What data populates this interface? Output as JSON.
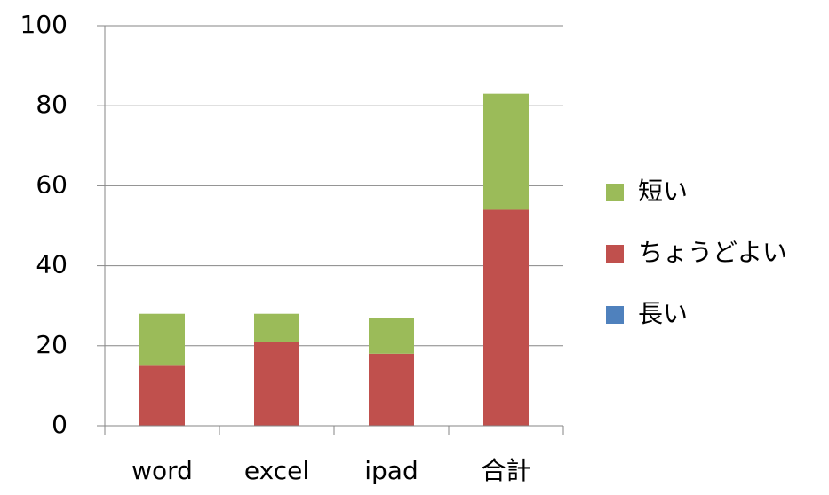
{
  "chart_data": {
    "type": "stacked_bar",
    "categories": [
      "word",
      "excel",
      "ipad",
      "合計"
    ],
    "series": [
      {
        "name": "長い",
        "color": "#4f81bd",
        "values": [
          0,
          0,
          0,
          0
        ]
      },
      {
        "name": "ちょうどよい",
        "color": "#c0504d",
        "values": [
          15,
          21,
          18,
          54
        ]
      },
      {
        "name": "短い",
        "color": "#9bbb59",
        "values": [
          13,
          7,
          9,
          29
        ]
      }
    ],
    "ylim": [
      0,
      100
    ],
    "yticks": [
      0,
      20,
      40,
      60,
      80,
      100
    ],
    "grid": true,
    "legend": "right"
  }
}
